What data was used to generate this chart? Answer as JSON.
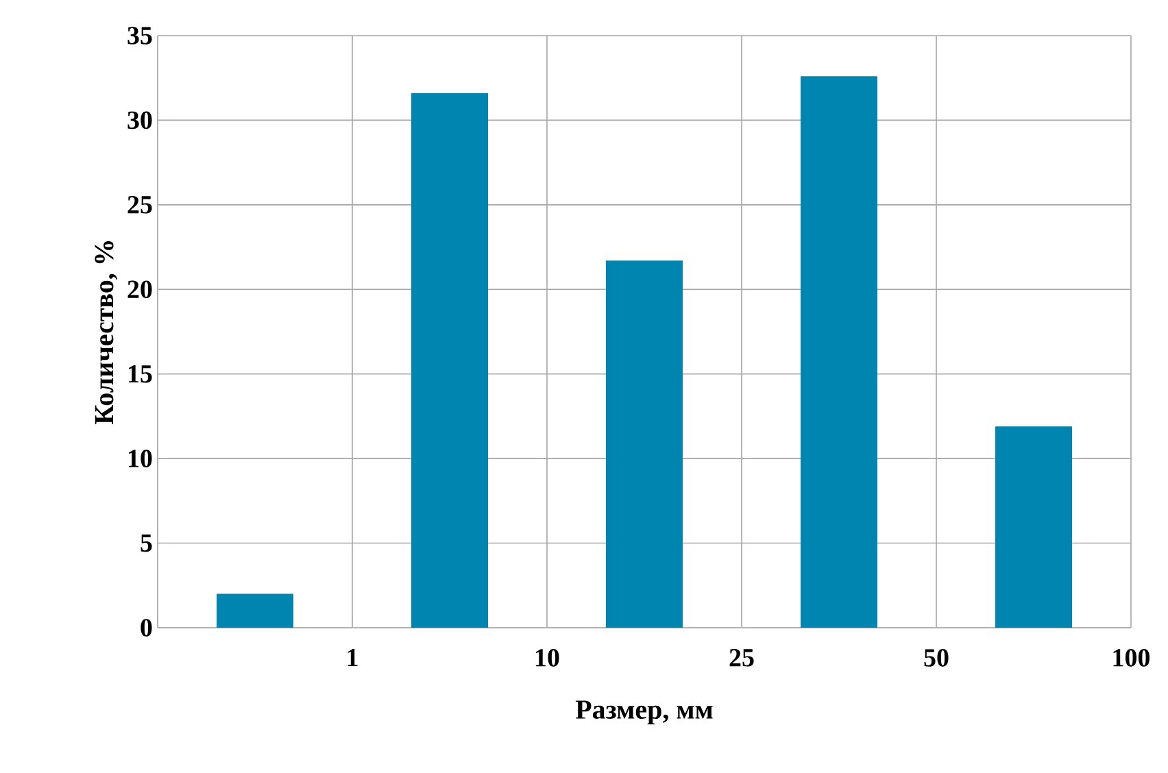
{
  "chart_data": {
    "type": "bar",
    "xlabel": "Размер, мм",
    "ylabel": "Количество, %",
    "categories": [
      null,
      null,
      null,
      null,
      null
    ],
    "values": [
      2,
      31.6,
      21.7,
      32.6,
      11.9
    ],
    "color": "#0085b0",
    "annotations": [
      "1",
      "10",
      "25",
      "50",
      "100"
    ],
    "ylim": [
      0,
      35
    ],
    "yticks": [
      0,
      5,
      10,
      15,
      20,
      25,
      30,
      35
    ],
    "grid": true
  }
}
